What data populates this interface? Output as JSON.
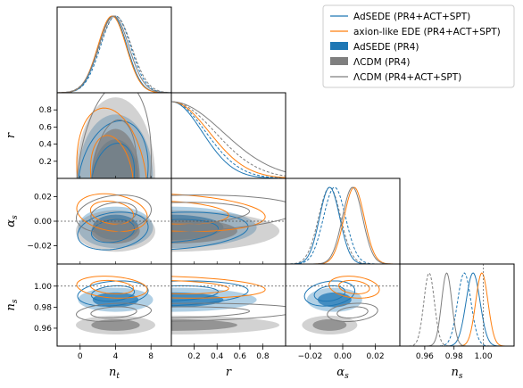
{
  "chart_data": {
    "type": "corner",
    "parameters": [
      {
        "key": "nt",
        "label": "n",
        "sub": "t",
        "range": [
          -2.6,
          10.3
        ],
        "ticks": [
          0,
          4,
          8
        ],
        "tick_labels": [
          "0",
          "4",
          "8"
        ]
      },
      {
        "key": "r",
        "label": "r",
        "sub": "",
        "range": [
          0,
          1.0
        ],
        "ticks": [
          0.2,
          0.4,
          0.6,
          0.8
        ],
        "tick_labels": [
          "0.2",
          "0.4",
          "0.6",
          "0.8"
        ]
      },
      {
        "key": "alpha_s",
        "label": "α",
        "sub": "s",
        "range": [
          -0.035,
          0.035
        ],
        "ticks": [
          -0.02,
          0.0,
          0.02
        ],
        "tick_labels": [
          "−0.02",
          "0.00",
          "0.02"
        ]
      },
      {
        "key": "ns",
        "label": "n",
        "sub": "s",
        "range": [
          0.943,
          1.021
        ],
        "ticks": [
          0.96,
          0.98,
          1.0
        ],
        "tick_labels": [
          "0.96",
          "0.98",
          "1.00"
        ]
      }
    ],
    "reference_lines": {
      "r": 0,
      "alpha_s": 0,
      "ns": 1.0
    },
    "legend": {
      "position": "top-right",
      "entries": [
        {
          "label": "AdSEDE (PR4+ACT+SPT)",
          "style": "line",
          "color": "#1f77b4"
        },
        {
          "label": "axion-like EDE (PR4+ACT+SPT)",
          "style": "line",
          "color": "#ff7f0e"
        },
        {
          "label": "AdSEDE (PR4)",
          "style": "fill",
          "color": "#1f77b4"
        },
        {
          "label": "ΛCDM (PR4)",
          "style": "fill",
          "color": "#7f7f7f"
        },
        {
          "label": "ΛCDM (PR4+ACT+SPT)",
          "style": "line",
          "color": "#7f7f7f"
        }
      ]
    },
    "series": [
      {
        "name": "AdSEDE (PR4+ACT+SPT)",
        "color": "#1f77b4",
        "style": "line",
        "mean": {
          "nt": 3.7,
          "r": 0.0,
          "alpha_s": -0.008,
          "ns": 0.993
        },
        "sigma": {
          "nt": 1.6,
          "r": 0.27,
          "alpha_s": 0.0062,
          "ns": 0.0048
        }
      },
      {
        "name": "axion-like EDE (PR4+ACT+SPT)",
        "color": "#ff7f0e",
        "style": "line",
        "mean": {
          "nt": 3.6,
          "r": 0.0,
          "alpha_s": 0.007,
          "ns": 0.999
        },
        "sigma": {
          "nt": 1.6,
          "r": 0.33,
          "alpha_s": 0.0062,
          "ns": 0.0042
        }
      },
      {
        "name": "AdSEDE (PR4)",
        "color": "#1f77b4",
        "style": "fill",
        "mean": {
          "nt": 4.0,
          "r": 0.0,
          "alpha_s": -0.005,
          "ns": 0.987
        },
        "sigma": {
          "nt": 1.7,
          "r": 0.3,
          "alpha_s": 0.0068,
          "ns": 0.0046
        }
      },
      {
        "name": "ΛCDM (PR4)",
        "color": "#7f7f7f",
        "style": "fill",
        "mean": {
          "nt": 4.0,
          "r": 0.0,
          "alpha_s": -0.008,
          "ns": 0.963
        },
        "sigma": {
          "nt": 1.8,
          "r": 0.38,
          "alpha_s": 0.0068,
          "ns": 0.0036
        }
      },
      {
        "name": "ΛCDM (PR4+ACT+SPT)",
        "color": "#7f7f7f",
        "style": "line",
        "mean": {
          "nt": 3.8,
          "r": 0.0,
          "alpha_s": 0.006,
          "ns": 0.975
        },
        "sigma": {
          "nt": 1.7,
          "r": 0.45,
          "alpha_s": 0.0062,
          "ns": 0.0035
        }
      }
    ],
    "grid": false
  }
}
